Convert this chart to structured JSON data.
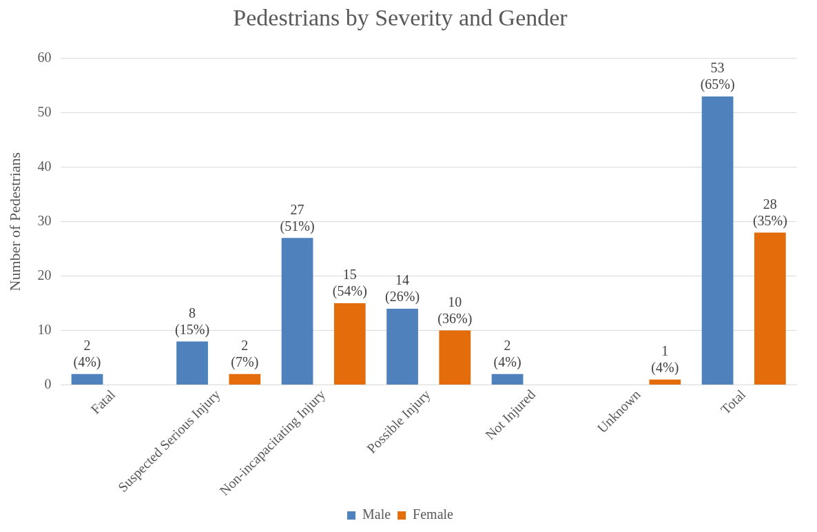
{
  "chart_data": {
    "type": "bar",
    "title": "Pedestrians by Severity and Gender",
    "ylabel": "Number of Pedestrians",
    "categories": [
      "Fatal",
      "Suspected Serious Injury",
      "Non-incapacitating Injury",
      "Possible Injury",
      "Not Injured",
      "Unknown",
      "Total"
    ],
    "series": [
      {
        "name": "Male",
        "color": "#4f81bd",
        "values": [
          2,
          8,
          27,
          14,
          2,
          null,
          53
        ],
        "value_labels": [
          "2 (4%)",
          "8 (15%)",
          "27 (51%)",
          "14 (26%)",
          "2 (4%)",
          null,
          "53 (65%)"
        ]
      },
      {
        "name": "Female",
        "color": "#e46c0a",
        "values": [
          null,
          2,
          15,
          10,
          null,
          1,
          28
        ],
        "value_labels": [
          null,
          "2 (7%)",
          "15 (54%)",
          "10 (36%)",
          null,
          "1 (4%)",
          "28 (35%)"
        ]
      }
    ],
    "ylim": [
      0,
      60
    ],
    "yticks": [
      0,
      10,
      20,
      30,
      40,
      50,
      60
    ],
    "grid": "y",
    "legend": "bottom"
  }
}
